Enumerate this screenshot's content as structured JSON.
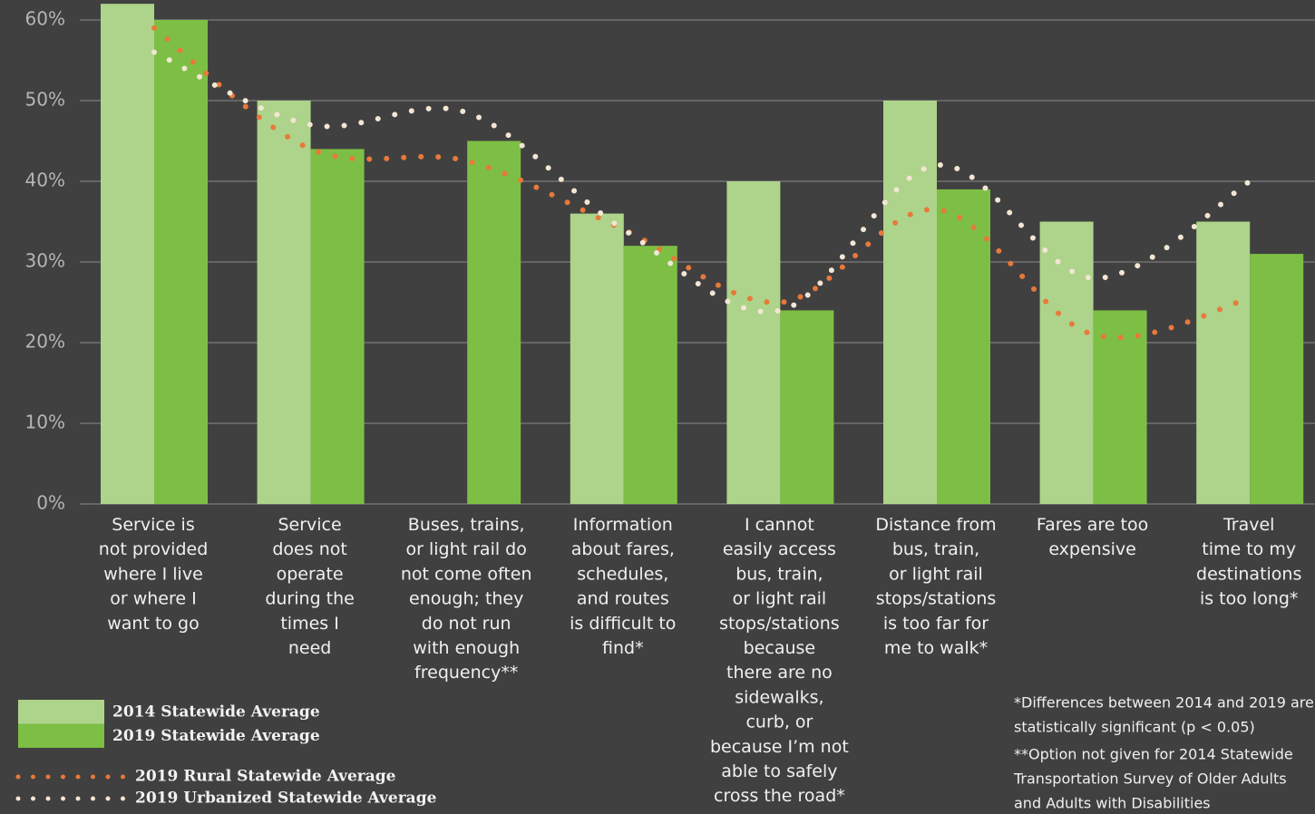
{
  "chart_data": {
    "type": "bar",
    "categories": [
      "Service is\nnot provided\nwhere I live\nor where I\nwant to go",
      "Service\ndoes not\noperate\nduring the\ntimes I\nneed",
      "Buses, trains,\nor light rail do\nnot come often\nenough; they\ndo not run\nwith enough\nfrequency**",
      "Information\nabout fares,\nschedules,\nand routes\nis difficult to\nfind*",
      "I cannot\neasily access\nbus, train,\nor light rail\nstops/stations\nbecause\nthere are no\nsidewalks,\ncurb, or\nbecause I’m not\nable to safely\ncross the road*",
      "Distance from\nbus, train,\nor light rail\nstops/stations\nis too far for\nme to walk*",
      "Fares are too\nexpensive",
      "Travel\ntime to my\ndestinations\nis too long*"
    ],
    "series": [
      {
        "name": "2014 Statewide Average",
        "color": "#add48a",
        "style": "bar",
        "values": [
          62,
          50,
          null,
          36,
          40,
          50,
          35,
          35
        ]
      },
      {
        "name": "2019 Statewide Average",
        "color": "#7dbf44",
        "style": "bar",
        "values": [
          60,
          44,
          45,
          32,
          24,
          39,
          24,
          31
        ]
      },
      {
        "name": "2019 Rural Statewide Average",
        "color": "#e8793a",
        "style": "dotted-line",
        "values": [
          59,
          44,
          42.5,
          34,
          25,
          36.5,
          21,
          25.5
        ]
      },
      {
        "name": "2019 Urbanized Statewide Average",
        "color": "#f3e6d4",
        "style": "dotted-line",
        "values": [
          56,
          47,
          48.5,
          34,
          24,
          42,
          28,
          40
        ]
      }
    ],
    "ylim": [
      0,
      60
    ],
    "yticks": [
      {
        "value": 0,
        "label": "0%"
      },
      {
        "value": 10,
        "label": "10%"
      },
      {
        "value": 20,
        "label": "20%"
      },
      {
        "value": 30,
        "label": "30%"
      },
      {
        "value": 40,
        "label": "40%"
      },
      {
        "value": 50,
        "label": "50%"
      },
      {
        "value": 60,
        "label": "60%"
      }
    ],
    "grid": true,
    "legend": "bottom-left",
    "notes": [
      [
        "*Differences between 2014 and 2019 are",
        "statistically significant (p < 0.05)"
      ],
      [
        "**Option not given for 2014 Statewide",
        "Transportation Survey of Older Adults",
        "and Adults with Disabilities"
      ]
    ]
  }
}
